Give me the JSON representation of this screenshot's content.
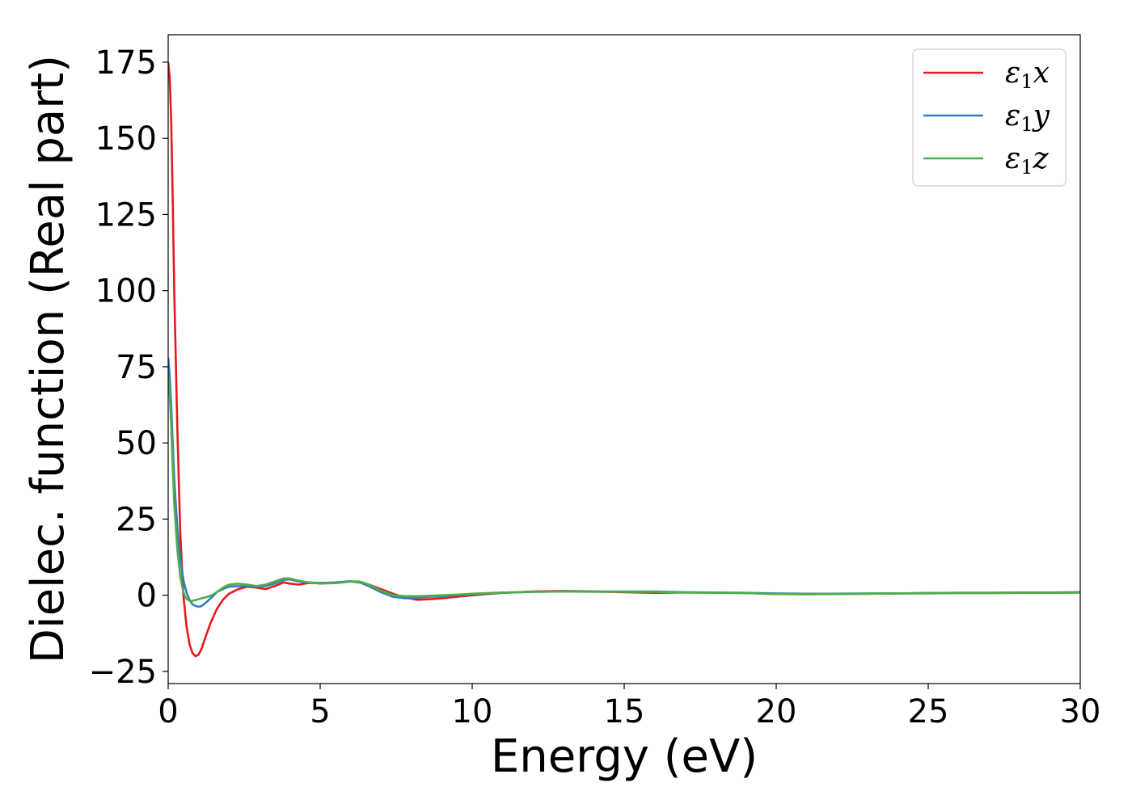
{
  "chart_data": {
    "type": "line",
    "xlabel": "Energy (eV)",
    "ylabel": "Dielec. function (Real part)",
    "xlim": [
      0,
      30
    ],
    "ylim": [
      -29,
      184
    ],
    "xticks": [
      0,
      5,
      10,
      15,
      20,
      25,
      30
    ],
    "xtick_labels": [
      "0",
      "5",
      "10",
      "15",
      "20",
      "25",
      "30"
    ],
    "yticks": [
      -25,
      0,
      25,
      50,
      75,
      100,
      125,
      150,
      175
    ],
    "ytick_labels": [
      "−25",
      "0",
      "25",
      "50",
      "75",
      "100",
      "125",
      "150",
      "175"
    ],
    "grid": false,
    "legend_position": "top-right",
    "series": [
      {
        "name": "ε1x",
        "legend": {
          "base": "ε",
          "sub": "1",
          "tail": "x"
        },
        "color": "#e41a1c",
        "x": [
          0,
          0.05,
          0.1,
          0.15,
          0.2,
          0.3,
          0.4,
          0.5,
          0.6,
          0.7,
          0.8,
          0.9,
          1.0,
          1.1,
          1.2,
          1.4,
          1.6,
          1.8,
          2.0,
          2.3,
          2.6,
          2.9,
          3.2,
          3.5,
          3.8,
          4.0,
          4.3,
          4.6,
          5.0,
          5.5,
          6.0,
          6.3,
          6.6,
          7.0,
          7.4,
          7.8,
          8.2,
          8.6,
          9.0,
          9.5,
          10.0,
          11.0,
          12.0,
          13.0,
          14.0,
          15.0,
          16.0,
          17.0,
          18.0,
          19.0,
          20.0,
          21.0,
          22.0,
          23.0,
          24.0,
          25.0,
          26.0,
          27.0,
          28.0,
          29.0,
          30.0
        ],
        "y": [
          175,
          170,
          155,
          130,
          100,
          55,
          20,
          0,
          -10,
          -16,
          -19,
          -20,
          -19.5,
          -17.5,
          -14.5,
          -9,
          -4.5,
          -1.5,
          0.5,
          2,
          2.8,
          2.5,
          2,
          3,
          4.2,
          3.8,
          3.5,
          4,
          4,
          4,
          4.5,
          4.2,
          3.5,
          2,
          0.5,
          -0.8,
          -1.5,
          -1.3,
          -1.0,
          -0.5,
          0,
          0.8,
          1.2,
          1.4,
          1.2,
          1.0,
          0.8,
          0.9,
          0.9,
          0.7,
          0.4,
          0.3,
          0.4,
          0.5,
          0.6,
          0.7,
          0.8,
          0.8,
          0.9,
          0.9,
          1.0
        ]
      },
      {
        "name": "ε1y",
        "legend": {
          "base": "ε",
          "sub": "1",
          "tail": "y"
        },
        "color": "#377eb8",
        "x": [
          0,
          0.05,
          0.1,
          0.15,
          0.2,
          0.3,
          0.4,
          0.5,
          0.6,
          0.7,
          0.8,
          0.9,
          1.0,
          1.1,
          1.2,
          1.4,
          1.6,
          1.8,
          2.0,
          2.3,
          2.6,
          2.9,
          3.2,
          3.5,
          3.8,
          4.0,
          4.3,
          4.6,
          5.0,
          5.5,
          6.0,
          6.3,
          6.6,
          7.0,
          7.4,
          7.8,
          8.2,
          8.6,
          9.0,
          9.5,
          10.0,
          11.0,
          12.0,
          13.0,
          14.0,
          15.0,
          16.0,
          17.0,
          18.0,
          19.0,
          20.0,
          21.0,
          22.0,
          23.0,
          24.0,
          25.0,
          26.0,
          27.0,
          28.0,
          29.0,
          30.0
        ],
        "y": [
          78,
          72,
          62,
          50,
          38,
          22,
          12,
          5,
          1,
          -1.5,
          -3,
          -3.5,
          -3.8,
          -3.5,
          -2.8,
          -1,
          1,
          2,
          2.8,
          3,
          3,
          2.8,
          3,
          3.8,
          5,
          5.2,
          4.5,
          4.2,
          4,
          4.2,
          4.6,
          4.2,
          3,
          1,
          -0.5,
          -1,
          -0.8,
          -0.5,
          -0.3,
          0,
          0.4,
          0.8,
          1.1,
          1.2,
          1.2,
          1.2,
          1.2,
          1.0,
          0.9,
          0.8,
          0.6,
          0.5,
          0.5,
          0.6,
          0.6,
          0.7,
          0.7,
          0.7,
          0.8,
          0.8,
          0.9
        ]
      },
      {
        "name": "ε1z",
        "legend": {
          "base": "ε",
          "sub": "1",
          "tail": "z"
        },
        "color": "#4daf4a",
        "x": [
          0,
          0.05,
          0.1,
          0.15,
          0.2,
          0.3,
          0.4,
          0.5,
          0.6,
          0.7,
          0.8,
          0.9,
          1.0,
          1.1,
          1.2,
          1.4,
          1.6,
          1.8,
          2.0,
          2.3,
          2.6,
          2.9,
          3.2,
          3.5,
          3.8,
          4.0,
          4.3,
          4.6,
          5.0,
          5.5,
          6.0,
          6.3,
          6.6,
          7.0,
          7.4,
          7.8,
          8.2,
          8.6,
          9.0,
          9.5,
          10.0,
          11.0,
          12.0,
          13.0,
          14.0,
          15.0,
          16.0,
          17.0,
          18.0,
          19.0,
          20.0,
          21.0,
          22.0,
          23.0,
          24.0,
          25.0,
          26.0,
          27.0,
          28.0,
          29.0,
          30.0
        ],
        "y": [
          72,
          66,
          55,
          42,
          30,
          15,
          6,
          1,
          -1.2,
          -1.8,
          -1.8,
          -1.6,
          -1.3,
          -1.0,
          -0.8,
          -0.2,
          1,
          2.5,
          3.5,
          3.8,
          3.5,
          3,
          3.5,
          4.5,
          5.5,
          5.5,
          4.8,
          4.2,
          3.8,
          4,
          4.5,
          4.5,
          3.5,
          1.5,
          0,
          -0.3,
          -0.3,
          -0.2,
          0,
          0.2,
          0.5,
          0.9,
          1.1,
          1.2,
          1.1,
          1.1,
          1.1,
          0.9,
          0.8,
          0.7,
          0.4,
          0.4,
          0.4,
          0.5,
          0.6,
          0.6,
          0.7,
          0.7,
          0.8,
          0.8,
          0.9
        ]
      }
    ]
  }
}
